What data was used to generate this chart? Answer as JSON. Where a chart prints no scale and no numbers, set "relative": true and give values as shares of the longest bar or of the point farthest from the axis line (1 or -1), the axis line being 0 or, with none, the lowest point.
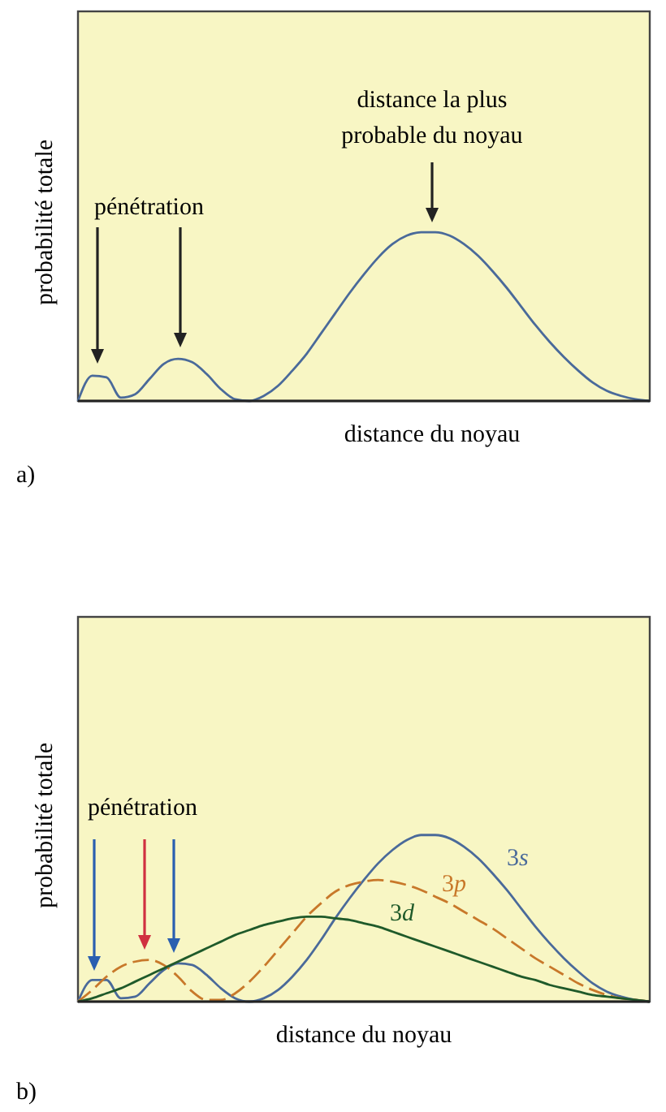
{
  "chart_data": [
    {
      "type": "line",
      "relative": true,
      "xlabel": "distance du noyau",
      "ylabel": "probabilité totale",
      "annotations": [
        "pénétration",
        "distance la plus probable du noyau",
        "a)"
      ],
      "categories": [
        null,
        null,
        null,
        null,
        null,
        null,
        null,
        null,
        null,
        null,
        null,
        null,
        null,
        null,
        null,
        null,
        null,
        null,
        null,
        null,
        null,
        null,
        null,
        null,
        null,
        null,
        null,
        null,
        null,
        null,
        null,
        null,
        null,
        null,
        null,
        null,
        null,
        null,
        null,
        null,
        null
      ],
      "series": [
        {
          "color": "#4a6a9a",
          "values": [
            0,
            0.15,
            0.14,
            0.02,
            0.04,
            0.13,
            0.22,
            0.25,
            0.23,
            0.16,
            0.07,
            0.01,
            0,
            0.03,
            0.09,
            0.18,
            0.28,
            0.4,
            0.52,
            0.64,
            0.75,
            0.85,
            0.93,
            0.98,
            1,
            1,
            0.98,
            0.93,
            0.86,
            0.77,
            0.67,
            0.56,
            0.45,
            0.35,
            0.26,
            0.18,
            0.11,
            0.06,
            0.03,
            0.01,
            0
          ]
        }
      ]
    },
    {
      "type": "line",
      "relative": true,
      "xlabel": "distance du noyau",
      "ylabel": "probabilité totale",
      "annotations": [
        "pénétration",
        "b)"
      ],
      "categories": [
        null,
        null,
        null,
        null,
        null,
        null,
        null,
        null,
        null,
        null,
        null,
        null,
        null,
        null,
        null,
        null,
        null,
        null,
        null,
        null,
        null,
        null,
        null,
        null,
        null,
        null,
        null,
        null,
        null,
        null,
        null,
        null,
        null,
        null,
        null,
        null,
        null,
        null,
        null,
        null,
        null
      ],
      "series": [
        {
          "name": "3s",
          "color": "#4a6a9a",
          "line_style": "solid",
          "values": [
            0,
            0.13,
            0.13,
            0.02,
            0.03,
            0.11,
            0.19,
            0.23,
            0.22,
            0.16,
            0.08,
            0.02,
            0,
            0.02,
            0.07,
            0.15,
            0.25,
            0.37,
            0.5,
            0.62,
            0.73,
            0.83,
            0.91,
            0.97,
            1,
            1,
            0.98,
            0.93,
            0.86,
            0.77,
            0.67,
            0.56,
            0.45,
            0.35,
            0.26,
            0.18,
            0.11,
            0.06,
            0.03,
            0.01,
            0
          ]
        },
        {
          "name": "3p",
          "color": "#c8782a",
          "line_style": "dashed",
          "values": [
            0,
            0.07,
            0.15,
            0.21,
            0.24,
            0.25,
            0.22,
            0.15,
            0.06,
            0.01,
            0.01,
            0.05,
            0.12,
            0.21,
            0.31,
            0.41,
            0.51,
            0.59,
            0.66,
            0.7,
            0.72,
            0.73,
            0.72,
            0.7,
            0.67,
            0.63,
            0.59,
            0.54,
            0.49,
            0.44,
            0.38,
            0.32,
            0.26,
            0.21,
            0.16,
            0.11,
            0.07,
            0.04,
            0.02,
            0.01,
            0
          ]
        },
        {
          "name": "3d",
          "color": "#1f5a2a",
          "line_style": "solid",
          "values": [
            0,
            0.02,
            0.05,
            0.08,
            0.12,
            0.16,
            0.2,
            0.24,
            0.28,
            0.32,
            0.36,
            0.4,
            0.43,
            0.46,
            0.48,
            0.5,
            0.51,
            0.51,
            0.5,
            0.49,
            0.47,
            0.45,
            0.42,
            0.39,
            0.36,
            0.33,
            0.3,
            0.27,
            0.24,
            0.21,
            0.18,
            0.15,
            0.13,
            0.1,
            0.08,
            0.06,
            0.04,
            0.03,
            0.02,
            0.01,
            0
          ]
        }
      ]
    }
  ]
}
